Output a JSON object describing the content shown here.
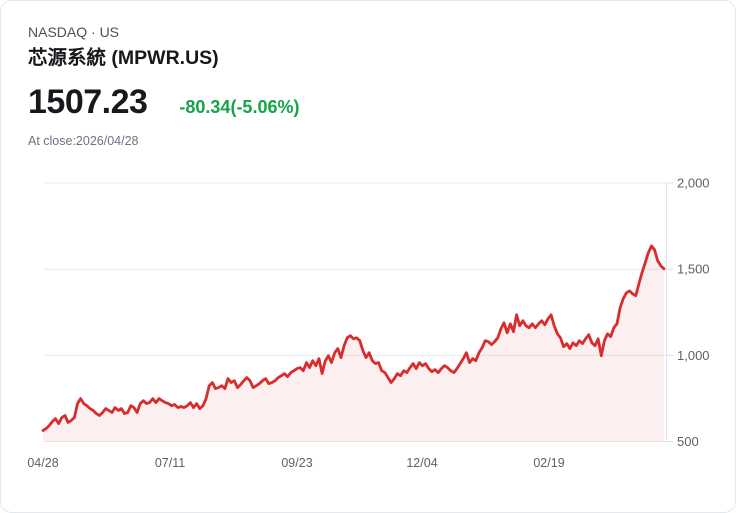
{
  "header": {
    "exchange": "NASDAQ · US",
    "title": "芯源系統 (MPWR.US)",
    "price": "1507.23",
    "change": "-80.34(-5.06%)",
    "as_of": "At close:2026/04/28"
  },
  "colors": {
    "line": "#d92d2d",
    "fill": "rgba(217,45,45,0.08)",
    "grid": "#e9ebef",
    "axis_line": "#e2e5ea",
    "tick": "#d8dce2",
    "axis_label": "#5b6269",
    "change_green": "#16a34a"
  },
  "chart_data": {
    "type": "area",
    "title": "",
    "xlabel": "",
    "ylabel": "",
    "legend": "none",
    "grid": "horizontal",
    "y_axis_side": "right",
    "ylim": [
      500,
      2000
    ],
    "y_ticks": [
      500,
      1000,
      1500,
      2000
    ],
    "y_tick_labels": [
      "500",
      "1,000",
      "1,500",
      "2,000"
    ],
    "x_tick_labels": [
      "04/28",
      "07/11",
      "09/23",
      "12/04",
      "02/19"
    ],
    "x_tick_positions": [
      0,
      0.2045,
      0.409,
      0.6103,
      0.8148
    ],
    "values": [
      564,
      575,
      593,
      616,
      633,
      604,
      639,
      651,
      610,
      622,
      639,
      720,
      749,
      720,
      708,
      691,
      680,
      662,
      651,
      668,
      691,
      680,
      668,
      697,
      680,
      691,
      662,
      668,
      708,
      697,
      668,
      720,
      737,
      720,
      726,
      749,
      726,
      749,
      737,
      726,
      720,
      708,
      714,
      697,
      703,
      697,
      708,
      726,
      697,
      720,
      691,
      708,
      749,
      824,
      842,
      807,
      813,
      824,
      807,
      865,
      842,
      853,
      813,
      830,
      853,
      871,
      853,
      813,
      824,
      836,
      853,
      865,
      836,
      842,
      853,
      871,
      882,
      894,
      876,
      900,
      911,
      923,
      929,
      911,
      958,
      929,
      969,
      940,
      981,
      894,
      969,
      998,
      958,
      1015,
      1039,
      987,
      1056,
      1102,
      1114,
      1096,
      1102,
      1085,
      1027,
      987,
      1015,
      969,
      952,
      958,
      911,
      900,
      871,
      842,
      865,
      894,
      882,
      911,
      900,
      929,
      952,
      923,
      958,
      940,
      952,
      923,
      905,
      917,
      900,
      923,
      940,
      929,
      911,
      900,
      923,
      952,
      981,
      1015,
      958,
      981,
      969,
      1015,
      1044,
      1085,
      1079,
      1062,
      1079,
      1102,
      1154,
      1189,
      1131,
      1183,
      1137,
      1235,
      1172,
      1201,
      1172,
      1160,
      1183,
      1160,
      1183,
      1201,
      1177,
      1212,
      1235,
      1172,
      1125,
      1102,
      1050,
      1068,
      1039,
      1073,
      1056,
      1085,
      1068,
      1096,
      1120,
      1073,
      1056,
      1096,
      998,
      1085,
      1125,
      1108,
      1160,
      1183,
      1276,
      1328,
      1363,
      1374,
      1357,
      1346,
      1415,
      1479,
      1537,
      1595,
      1635,
      1612,
      1548,
      1519,
      1502
    ]
  }
}
